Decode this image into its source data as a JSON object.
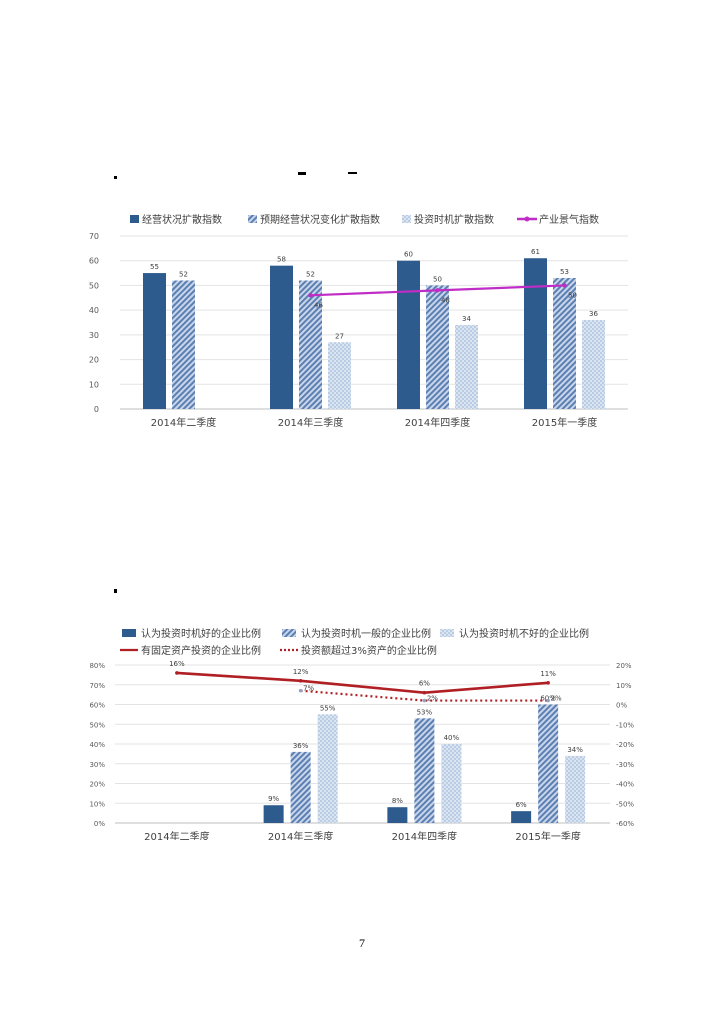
{
  "page_number": "7",
  "chart_data": [
    {
      "type": "bar",
      "categories": [
        "2014年二季度",
        "2014年三季度",
        "2014年四季度",
        "2015年一季度"
      ],
      "series": [
        {
          "name": "经营状况扩散指数",
          "kind": "bar",
          "color": "#2e5b8e",
          "pattern": "solid",
          "values": [
            55,
            58,
            60,
            61
          ]
        },
        {
          "name": "预期经营状况变化扩散指数",
          "kind": "bar",
          "color": "#7592bd",
          "pattern": "diagonal",
          "values": [
            52,
            52,
            50,
            53
          ]
        },
        {
          "name": "投资时机扩散指数",
          "kind": "bar",
          "color": "#b8cbe3",
          "pattern": "dots",
          "values": [
            null,
            27,
            34,
            36
          ]
        },
        {
          "name": "产业景气指数",
          "kind": "line",
          "color": "#c02cc6",
          "values": [
            null,
            46,
            48,
            50
          ]
        }
      ],
      "y_ticks": [
        "0",
        "10",
        "20",
        "30",
        "40",
        "50",
        "60",
        "70"
      ],
      "ylim": [
        0,
        70
      ],
      "grid": true,
      "legend": "top",
      "data_labels": {
        "bars": [
          [
            "55",
            "58",
            "60",
            "61"
          ],
          [
            "52",
            "52",
            "50",
            "53"
          ],
          [
            null,
            "27",
            "34",
            "36"
          ]
        ],
        "line": [
          null,
          "46",
          "48",
          "50"
        ]
      }
    },
    {
      "type": "bar",
      "categories": [
        "2014年二季度",
        "2014年三季度",
        "2014年四季度",
        "2015年一季度"
      ],
      "series": [
        {
          "name": "认为投资时机好的企业比例",
          "kind": "bar",
          "axis": "left",
          "color": "#2e5b8e",
          "pattern": "solid",
          "values": [
            null,
            9,
            8,
            6
          ]
        },
        {
          "name": "认为投资时机一般的企业比例",
          "kind": "bar",
          "axis": "left",
          "color": "#7592bd",
          "pattern": "diagonal",
          "values": [
            null,
            36,
            53,
            60
          ]
        },
        {
          "name": "认为投资时机不好的企业比例",
          "kind": "bar",
          "axis": "left",
          "color": "#b8cbe3",
          "pattern": "dots",
          "values": [
            null,
            55,
            40,
            34
          ]
        },
        {
          "name": "有固定资产投资的企业比例",
          "kind": "line",
          "axis": "right",
          "color": "#b01f24",
          "dash": "solid",
          "values": [
            16,
            12,
            6,
            11
          ]
        },
        {
          "name": "投资额超过3%资产的企业比例",
          "kind": "line",
          "axis": "right",
          "color": "#b01f24",
          "dash": "dotted",
          "values": [
            null,
            7,
            2,
            2
          ]
        }
      ],
      "y_ticks_left": [
        "0%",
        "10%",
        "20%",
        "30%",
        "40%",
        "50%",
        "60%",
        "70%",
        "80%"
      ],
      "y_ticks_right": [
        "20%",
        "10%",
        "0%",
        "-10%",
        "-20%",
        "-30%",
        "-40%",
        "-50%",
        "-60%"
      ],
      "ylim_left": [
        0,
        80
      ],
      "ylim_right": [
        -60,
        20
      ],
      "grid": true,
      "legend": "top",
      "data_labels": {
        "bars": [
          [
            null,
            "9%",
            "8%",
            "6%"
          ],
          [
            null,
            "36%",
            "53%",
            "60%"
          ],
          [
            null,
            "55%",
            "40%",
            "34%"
          ]
        ],
        "lines": [
          [
            "16%",
            "12%",
            "6%",
            "11%"
          ],
          [
            null,
            "7%",
            "2%",
            "2%"
          ]
        ]
      }
    }
  ]
}
